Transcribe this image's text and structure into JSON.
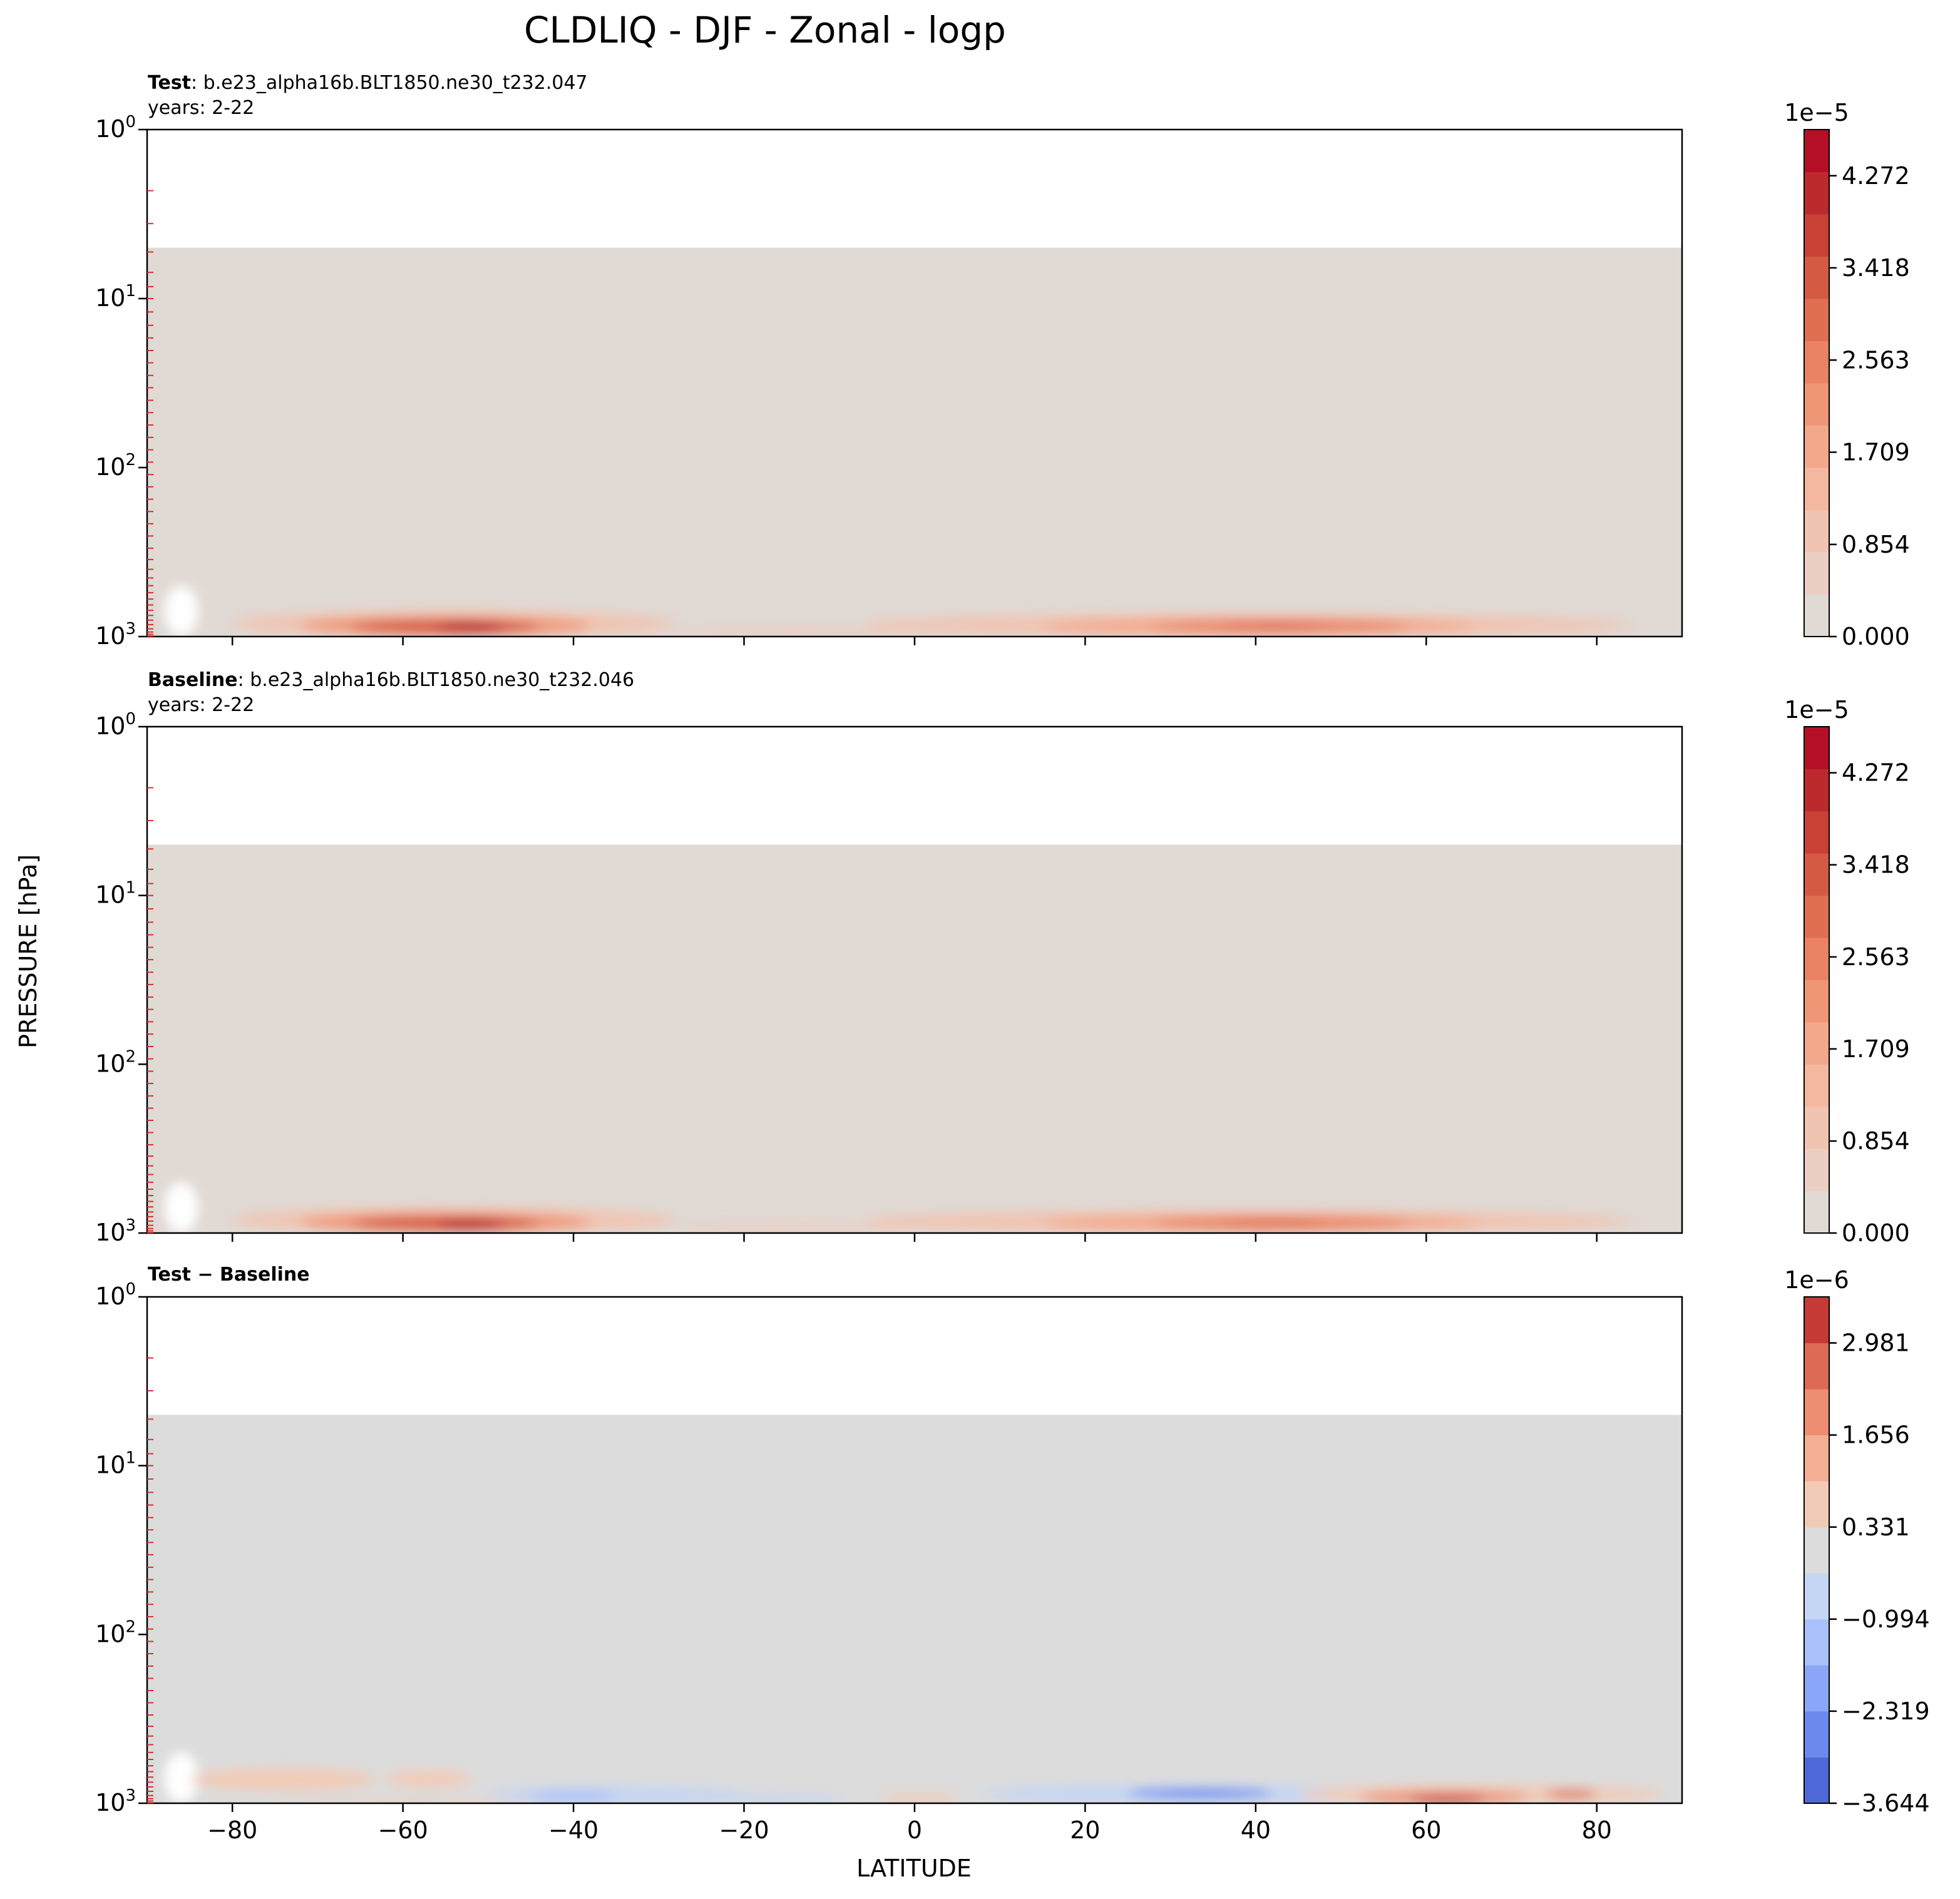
{
  "figure": {
    "title": "CLDLIQ - DJF - Zonal - logp",
    "xlabel": "LATITUDE",
    "ylabel": "PRESSURE [hPa]",
    "y_scale": "log",
    "y_inverted": true,
    "xlim": [
      -90,
      90
    ],
    "ylim": [
      1000,
      1
    ],
    "x_ticks": [
      -80,
      -60,
      -40,
      -20,
      0,
      20,
      40,
      60,
      80
    ],
    "y_ticks": [
      {
        "value": 1,
        "base": "10",
        "exp": "0"
      },
      {
        "value": 10,
        "base": "10",
        "exp": "1"
      },
      {
        "value": 100,
        "base": "10",
        "exp": "2"
      },
      {
        "value": 1000,
        "base": "10",
        "exp": "3"
      }
    ],
    "model_levels_hpa": [
      2.3,
      3.6,
      5.3,
      7.0,
      8.5,
      10.0,
      12.0,
      14.4,
      17.1,
      20.3,
      24.0,
      28.5,
      33.7,
      40.0,
      47.3,
      56.0,
      66.3,
      78.5,
      92.9,
      110,
      130,
      154,
      182,
      215,
      254,
      300,
      350,
      400,
      450,
      500,
      550,
      600,
      650,
      700,
      750,
      800,
      850,
      900,
      940,
      970,
      993
    ],
    "colors": {
      "level_tick": "#d9302a",
      "nan_fill": "#e2dbd6",
      "diff_zero_fill": "#dcdcdc"
    }
  },
  "chart_data": [
    {
      "type": "heatmap",
      "panel": "test",
      "title_bold": "Test",
      "title_rest": ": b.e23_alpha16b.BLT1850.ne30_t232.047",
      "subtitle": "years: 2-22",
      "data_top_hpa": 5,
      "colorbar": {
        "multiplier": "1e−5",
        "vmin": 0,
        "vmax": 4.7,
        "tick_values": [
          0.0,
          0.854,
          1.709,
          2.563,
          3.418,
          4.272
        ],
        "tick_labels": [
          "0.000",
          "0.854",
          "1.709",
          "2.563",
          "3.418",
          "4.272"
        ],
        "bins": [
          "#e0d9d4",
          "#eccfc3",
          "#f1c4b2",
          "#f4b8a0",
          "#f3a88b",
          "#ef9676",
          "#e98363",
          "#e06f52",
          "#d55a43",
          "#c94135",
          "#bd2a2e",
          "#b40f26"
        ]
      },
      "features": [
        {
          "lat": [
            -88,
            -84
          ],
          "p": [
            500,
            1000
          ],
          "value": 0,
          "note": "surface mask (white)"
        },
        {
          "lat": [
            -80,
            -28
          ],
          "p": [
            700,
            1000
          ],
          "value": 1.0
        },
        {
          "lat": [
            -72,
            -38
          ],
          "p": [
            760,
            980
          ],
          "value": 2.2
        },
        {
          "lat": [
            -66,
            -44
          ],
          "p": [
            800,
            960
          ],
          "value": 3.3
        },
        {
          "lat": [
            -56,
            -48
          ],
          "p": [
            830,
            950
          ],
          "value": 4.5
        },
        {
          "lat": [
            -28,
            0
          ],
          "p": [
            880,
            1000
          ],
          "value": 0.5
        },
        {
          "lat": [
            -6,
            84
          ],
          "p": [
            730,
            1000
          ],
          "value": 1.0
        },
        {
          "lat": [
            15,
            66
          ],
          "p": [
            780,
            970
          ],
          "value": 1.9
        },
        {
          "lat": [
            28,
            58
          ],
          "p": [
            800,
            940
          ],
          "value": 2.7
        },
        {
          "lat": [
            36,
            48
          ],
          "p": [
            830,
            920
          ],
          "value": 3.1
        }
      ]
    },
    {
      "type": "heatmap",
      "panel": "baseline",
      "title_bold": "Baseline",
      "title_rest": ": b.e23_alpha16b.BLT1850.ne30_t232.046",
      "subtitle": "years: 2-22",
      "data_top_hpa": 5,
      "colorbar": {
        "multiplier": "1e−5",
        "vmin": 0,
        "vmax": 4.7,
        "tick_values": [
          0.0,
          0.854,
          1.709,
          2.563,
          3.418,
          4.272
        ],
        "tick_labels": [
          "0.000",
          "0.854",
          "1.709",
          "2.563",
          "3.418",
          "4.272"
        ],
        "bins": [
          "#e0d9d4",
          "#eccfc3",
          "#f1c4b2",
          "#f4b8a0",
          "#f3a88b",
          "#ef9676",
          "#e98363",
          "#e06f52",
          "#d55a43",
          "#c94135",
          "#bd2a2e",
          "#b40f26"
        ]
      },
      "features": [
        {
          "lat": [
            -88,
            -84
          ],
          "p": [
            500,
            1000
          ],
          "value": 0,
          "note": "surface mask (white)"
        },
        {
          "lat": [
            -80,
            -28
          ],
          "p": [
            700,
            1000
          ],
          "value": 1.0
        },
        {
          "lat": [
            -72,
            -38
          ],
          "p": [
            760,
            980
          ],
          "value": 2.2
        },
        {
          "lat": [
            -66,
            -44
          ],
          "p": [
            800,
            960
          ],
          "value": 3.3
        },
        {
          "lat": [
            -56,
            -48
          ],
          "p": [
            830,
            950
          ],
          "value": 4.5
        },
        {
          "lat": [
            -28,
            0
          ],
          "p": [
            880,
            1000
          ],
          "value": 0.5
        },
        {
          "lat": [
            -6,
            84
          ],
          "p": [
            730,
            1000
          ],
          "value": 1.0
        },
        {
          "lat": [
            15,
            66
          ],
          "p": [
            780,
            970
          ],
          "value": 1.9
        },
        {
          "lat": [
            28,
            58
          ],
          "p": [
            800,
            940
          ],
          "value": 2.6
        },
        {
          "lat": [
            36,
            48
          ],
          "p": [
            830,
            920
          ],
          "value": 3.0
        }
      ]
    },
    {
      "type": "heatmap",
      "panel": "difference",
      "title_bold": "Test − Baseline",
      "title_rest": "",
      "subtitle": "",
      "data_top_hpa": 5,
      "colorbar": {
        "multiplier": "1e−6",
        "vmin": -3.644,
        "vmax": 3.644,
        "tick_values": [
          -3.644,
          -2.319,
          -0.994,
          0.331,
          1.656,
          2.981
        ],
        "tick_labels": [
          "−3.644",
          "−2.319",
          "−0.994",
          "0.331",
          "1.656",
          "2.981"
        ],
        "bins": [
          "#4f6ad8",
          "#6b8aed",
          "#8ba6f8",
          "#a9c1fb",
          "#c5d5f4",
          "#dcdcdc",
          "#f2cbb7",
          "#f4ae93",
          "#ed8d72",
          "#dc6a54",
          "#c53a34"
        ]
      },
      "features": [
        {
          "lat": [
            -88,
            -84
          ],
          "p": [
            500,
            1000
          ],
          "value": 0,
          "note": "surface mask (white)"
        },
        {
          "lat": [
            -85,
            -63
          ],
          "p": [
            620,
            840
          ],
          "value": 0.6
        },
        {
          "lat": [
            -62,
            -52
          ],
          "p": [
            640,
            800
          ],
          "value": 0.5
        },
        {
          "lat": [
            -75,
            -45
          ],
          "p": [
            950,
            1000
          ],
          "value": 0.7
        },
        {
          "lat": [
            -50,
            -20
          ],
          "p": [
            800,
            1000
          ],
          "value": -0.6
        },
        {
          "lat": [
            -45,
            -35
          ],
          "p": [
            850,
            980
          ],
          "value": -1.2
        },
        {
          "lat": [
            -25,
            -8
          ],
          "p": [
            900,
            1000
          ],
          "value": -0.5
        },
        {
          "lat": [
            -4,
            5
          ],
          "p": [
            880,
            1000
          ],
          "value": 0.8
        },
        {
          "lat": [
            8,
            55
          ],
          "p": [
            780,
            1000
          ],
          "value": -0.7
        },
        {
          "lat": [
            25,
            42
          ],
          "p": [
            820,
            930
          ],
          "value": -2.4
        },
        {
          "lat": [
            45,
            88
          ],
          "p": [
            780,
            1000
          ],
          "value": 0.8
        },
        {
          "lat": [
            52,
            72
          ],
          "p": [
            850,
            1000
          ],
          "value": 2.0
        },
        {
          "lat": [
            58,
            67
          ],
          "p": [
            900,
            1000
          ],
          "value": 3.3
        },
        {
          "lat": [
            74,
            80
          ],
          "p": [
            840,
            930
          ],
          "value": 2.6
        }
      ]
    }
  ]
}
